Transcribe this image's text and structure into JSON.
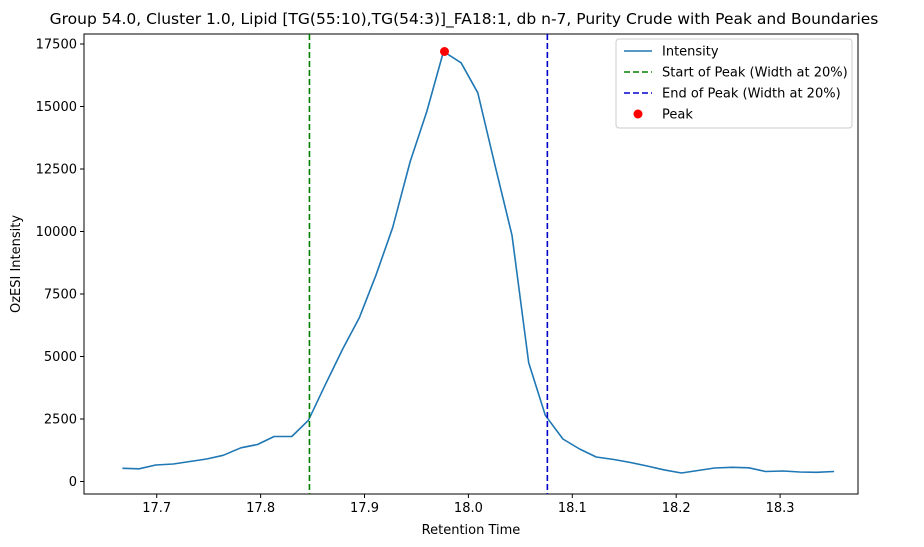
{
  "chart_data": {
    "type": "line",
    "title": "Group 54.0, Cluster 1.0, Lipid [TG(55:10),TG(54:3)]_FA18:1, db n-7, Purity Crude with Peak and Boundaries",
    "xlabel": "Retention Time",
    "ylabel": "OzESI Intensity",
    "xlim": [
      17.63,
      18.375
    ],
    "ylim": [
      -500,
      17900
    ],
    "x_ticks": [
      17.7,
      17.8,
      17.9,
      18.0,
      18.1,
      18.2,
      18.3
    ],
    "x_tick_labels": [
      "17.7",
      "17.8",
      "17.9",
      "18.0",
      "18.1",
      "18.2",
      "18.3"
    ],
    "y_ticks": [
      0,
      2500,
      5000,
      7500,
      10000,
      12500,
      15000,
      17500
    ],
    "y_tick_labels": [
      "0",
      "2500",
      "5000",
      "7500",
      "10000",
      "12500",
      "15000",
      "17500"
    ],
    "grid": false,
    "legend_position": "top-right",
    "series": [
      {
        "name": "Intensity",
        "color": "#1f77b4",
        "style": "solid",
        "x": [
          17.667,
          17.683,
          17.699,
          17.716,
          17.732,
          17.748,
          17.764,
          17.781,
          17.797,
          17.813,
          17.83,
          17.846,
          17.862,
          17.879,
          17.895,
          17.911,
          17.927,
          17.944,
          17.96,
          17.976,
          17.993,
          18.009,
          18.025,
          18.042,
          18.058,
          18.074,
          18.091,
          18.107,
          18.123,
          18.14,
          18.156,
          18.172,
          18.188,
          18.205,
          18.221,
          18.237,
          18.254,
          18.27,
          18.286,
          18.303,
          18.319,
          18.335,
          18.352
        ],
        "y": [
          530,
          510,
          660,
          700,
          800,
          900,
          1050,
          1350,
          1480,
          1800,
          1800,
          2450,
          3850,
          5300,
          6550,
          8250,
          10150,
          12800,
          14800,
          17200,
          16750,
          15550,
          12750,
          9850,
          4750,
          2650,
          1700,
          1300,
          980,
          880,
          760,
          620,
          470,
          340,
          440,
          540,
          570,
          550,
          400,
          420,
          380,
          370,
          400
        ]
      }
    ],
    "vlines": [
      {
        "name": "Start of Peak (Width at 20%)",
        "x": 17.847,
        "color": "#008000",
        "style": "dashed"
      },
      {
        "name": "End of Peak (Width at 20%)",
        "x": 18.076,
        "color": "#0000cd",
        "style": "dashed"
      }
    ],
    "points": [
      {
        "name": "Peak",
        "x": 17.977,
        "y": 17200,
        "color": "#ff0000"
      }
    ]
  }
}
